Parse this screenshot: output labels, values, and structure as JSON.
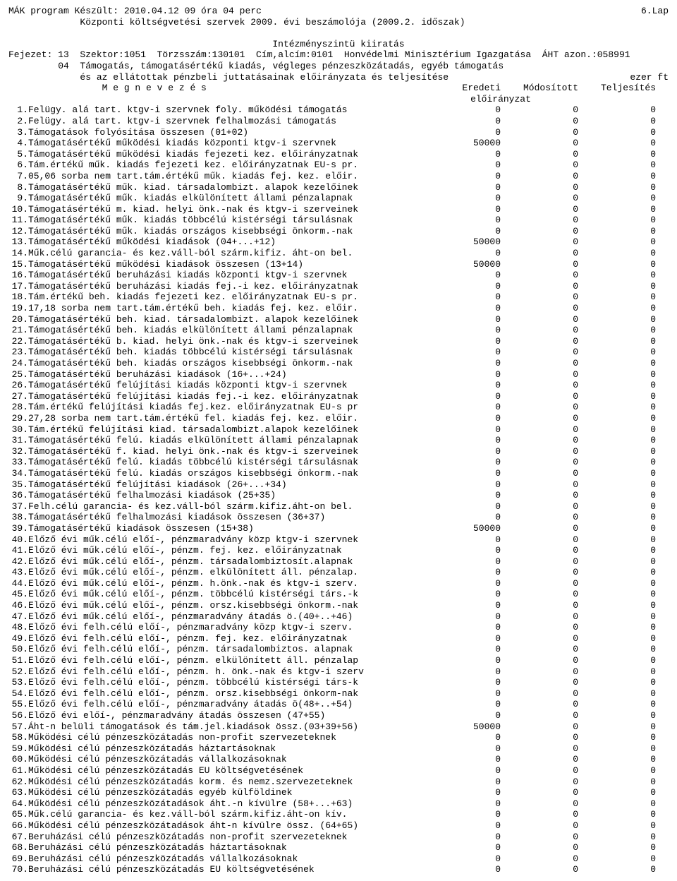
{
  "header": {
    "left_line1": " MÁK program Készült: 2010.04.12  09 óra 04 perc",
    "right_line1": "6.Lap",
    "line2": "             Központi költségvetési szervek 2009. évi beszámolója (2009.2. időszak)",
    "title_center": "Intézményszintü kiiratás",
    "fejezet_line": "Fejezet: 13  Szektor:1051  Törzsszám:130101  Cím,alcím:0101  Honvédelmi Minisztérium Igazgatása  ÁHT azon.:058991",
    "group_line1": "         04  Támogatás, támogatásértékű kiadás, végleges pénzeszközátadás, egyéb támogatás",
    "group_line2_left": "             és az ellátottak pénzbeli juttatásainak előirányzata és teljesítése",
    "group_line2_right": "ezer ft",
    "megnevezes": "                 M e g n e v e z é s",
    "col1": "Eredeti",
    "col2": "Módosított",
    "col3": "Teljesítés",
    "sub": "előirányzat"
  },
  "rows": [
    {
      "n": "1.",
      "label": "Felügy. alá tart. ktgv-i szervnek foly. működési támogatás",
      "v": [
        0,
        0,
        0
      ]
    },
    {
      "n": "2.",
      "label": "Felügy. alá tart. ktgv-i szervnek felhalmozási támogatás",
      "v": [
        0,
        0,
        0
      ]
    },
    {
      "n": "3.",
      "label": " Támogatások folyósítása összesen (01+02)",
      "v": [
        0,
        0,
        0
      ]
    },
    {
      "n": "4.",
      "label": "Támogatásértékű működési kiadás központi ktgv-i szervnek",
      "v": [
        50000,
        0,
        0
      ]
    },
    {
      "n": "5.",
      "label": "Támogatásértékű működési kiadás fejezeti kez. előirányzatnak",
      "v": [
        0,
        0,
        0
      ]
    },
    {
      "n": "6.",
      "label": "Tám.értékű műk. kiadás fejezeti kez. előirányzatnak EU-s pr.",
      "v": [
        0,
        0,
        0
      ]
    },
    {
      "n": "7.",
      "label": "05,06 sorba nem tart.tám.értékű műk. kiadás fej. kez. előir.",
      "v": [
        0,
        0,
        0
      ]
    },
    {
      "n": "8.",
      "label": "Támogatásértékű műk. kiad. társadalombizt. alapok kezelőinek",
      "v": [
        0,
        0,
        0
      ]
    },
    {
      "n": "9.",
      "label": "Támogatásértékű műk. kiadás elkülönített állami pénzalapnak",
      "v": [
        0,
        0,
        0
      ]
    },
    {
      "n": "10.",
      "label": "Támogatásértékű m. kiad. helyi önk.-nak és ktgv-i szerveinek",
      "v": [
        0,
        0,
        0
      ]
    },
    {
      "n": "11.",
      "label": "Támogatásértékű műk. kiadás többcélú kistérségi társulásnak",
      "v": [
        0,
        0,
        0
      ]
    },
    {
      "n": "12.",
      "label": "Támogatásértékű műk. kiadás országos kisebbségi önkorm.-nak",
      "v": [
        0,
        0,
        0
      ]
    },
    {
      "n": "13.",
      "label": " Támogatásértékű működési kiadások (04+...+12)",
      "v": [
        50000,
        0,
        0
      ]
    },
    {
      "n": "14.",
      "label": "Műk.célú garancia- és kez.váll-ból szárm.kifiz. áht-on bel.",
      "v": [
        0,
        0,
        0
      ]
    },
    {
      "n": "15.",
      "label": "Támogatásértékű működési kiadások összesen (13+14)",
      "v": [
        50000,
        0,
        0
      ]
    },
    {
      "n": "16.",
      "label": "Támogatásértékű beruházási kiadás központi ktgv-i szervnek",
      "v": [
        0,
        0,
        0
      ]
    },
    {
      "n": "17.",
      "label": "Támogatásértékű beruházási kiadás fej.-i kez. előirányzatnak",
      "v": [
        0,
        0,
        0
      ]
    },
    {
      "n": "18.",
      "label": "Tám.értékű beh. kiadás fejezeti kez. előirányzatnak EU-s pr.",
      "v": [
        0,
        0,
        0
      ]
    },
    {
      "n": "19.",
      "label": "17,18 sorba nem tart.tám.értékű beh. kiadás fej. kez. előir.",
      "v": [
        0,
        0,
        0
      ]
    },
    {
      "n": "20.",
      "label": "Támogatásértékű beh. kiad. társadalombizt. alapok kezelőinek",
      "v": [
        0,
        0,
        0
      ]
    },
    {
      "n": "21.",
      "label": "Támogatásértékű beh. kiadás elkülönített állami pénzalapnak",
      "v": [
        0,
        0,
        0
      ]
    },
    {
      "n": "22.",
      "label": "Támogatásértékű b. kiad. helyi önk.-nak és ktgv-i szerveinek",
      "v": [
        0,
        0,
        0
      ]
    },
    {
      "n": "23.",
      "label": "Támogatásértékű beh. kiadás többcélú kistérségi társulásnak",
      "v": [
        0,
        0,
        0
      ]
    },
    {
      "n": "24.",
      "label": "Támogatásértékű beh. kiadás országos kisebbségi önkorm.-nak",
      "v": [
        0,
        0,
        0
      ]
    },
    {
      "n": "25.",
      "label": "Támogatásértékű beruházási kiadások (16+...+24)",
      "v": [
        0,
        0,
        0
      ]
    },
    {
      "n": "26.",
      "label": "Támogatásértékű felújítási kiadás központi ktgv-i szervnek",
      "v": [
        0,
        0,
        0
      ]
    },
    {
      "n": "27.",
      "label": "Támogatásértékű felújítási kiadás fej.-i kez. előirányzatnak",
      "v": [
        0,
        0,
        0
      ]
    },
    {
      "n": "28.",
      "label": "Tám.értékű felújítási kiadás fej.kez. előirányzatnak EU-s pr",
      "v": [
        0,
        0,
        0
      ]
    },
    {
      "n": "29.",
      "label": "27,28 sorba nem tart.tám.értékű fel. kiadás fej. kez. előir.",
      "v": [
        0,
        0,
        0
      ]
    },
    {
      "n": "30.",
      "label": "Tám.értékű felújítási kiad. társadalombizt.alapok kezelőinek",
      "v": [
        0,
        0,
        0
      ]
    },
    {
      "n": "31.",
      "label": "Támogatásértékű felú. kiadás elkülönített állami pénzalapnak",
      "v": [
        0,
        0,
        0
      ]
    },
    {
      "n": "32.",
      "label": "Támogatásértékű f. kiad. helyi önk.-nak és ktgv-i szerveinek",
      "v": [
        0,
        0,
        0
      ]
    },
    {
      "n": "33.",
      "label": "Támogatásértékű felú. kiadás többcélú kistérségi társulásnak",
      "v": [
        0,
        0,
        0
      ]
    },
    {
      "n": "34.",
      "label": "Támogatásértékű felú. kiadás országos kisebbségi önkorm.-nak",
      "v": [
        0,
        0,
        0
      ]
    },
    {
      "n": "35.",
      "label": "Támogatásértékű felújítási kiadások (26+...+34)",
      "v": [
        0,
        0,
        0
      ]
    },
    {
      "n": "36.",
      "label": "Támogatásértékű felhalmozási kiadások (25+35)",
      "v": [
        0,
        0,
        0
      ]
    },
    {
      "n": "37.",
      "label": "Felh.célú garancia- és kez.váll-ból szárm.kifiz.áht-on bel.",
      "v": [
        0,
        0,
        0
      ]
    },
    {
      "n": "38.",
      "label": "Támogatásértékű felhalmozási kiadások összesen (36+37)",
      "v": [
        0,
        0,
        0
      ]
    },
    {
      "n": "39.",
      "label": "Támogatásértékű kiadások összesen (15+38)",
      "v": [
        50000,
        0,
        0
      ]
    },
    {
      "n": "40.",
      "label": "Előző évi műk.célú előí-, pénzmaradvány közp ktgv-i szervnek",
      "v": [
        0,
        0,
        0
      ]
    },
    {
      "n": "41.",
      "label": "Előző évi műk.célú előí-, pénzm. fej. kez. előirányzatnak",
      "v": [
        0,
        0,
        0
      ]
    },
    {
      "n": "42.",
      "label": "Előző évi műk.célú előí-, pénzm. társadalombiztosít.alapnak",
      "v": [
        0,
        0,
        0
      ]
    },
    {
      "n": "43.",
      "label": "Előző évi műk.célú előí-, pénzm. elkülönített áll. pénzalap.",
      "v": [
        0,
        0,
        0
      ]
    },
    {
      "n": "44.",
      "label": "Előző évi műk.célú előí-, pénzm. h.önk.-nak és ktgv-i szerv.",
      "v": [
        0,
        0,
        0
      ]
    },
    {
      "n": "45.",
      "label": "Előző évi műk.célú előí-, pénzm. többcélú kistérségi társ.-k",
      "v": [
        0,
        0,
        0
      ]
    },
    {
      "n": "46.",
      "label": "Előző évi műk.célú előí-, pénzm. orsz.kisebbségi önkorm.-nak",
      "v": [
        0,
        0,
        0
      ]
    },
    {
      "n": "47.",
      "label": "Előző évi műk.célú előí-, pénzmaradvány átadás ö.(40+..+46)",
      "v": [
        0,
        0,
        0
      ]
    },
    {
      "n": "48.",
      "label": "Előző évi felh.célú előí-, pénzmaradvány közp ktgv-i szerv.",
      "v": [
        0,
        0,
        0
      ]
    },
    {
      "n": "49.",
      "label": "Előző évi felh.célú előí-, pénzm. fej. kez. előirányzatnak",
      "v": [
        0,
        0,
        0
      ]
    },
    {
      "n": "50.",
      "label": "Előző évi felh.célú előí-, pénzm. társadalombiztos. alapnak",
      "v": [
        0,
        0,
        0
      ]
    },
    {
      "n": "51.",
      "label": "Előző évi felh.célú előí-, pénzm. elkülönített áll. pénzalap",
      "v": [
        0,
        0,
        0
      ]
    },
    {
      "n": "52.",
      "label": "Előző évi felh.célú előí-, pénzm. h. önk.-nak és ktgv-i szerv",
      "v": [
        0,
        0,
        0
      ]
    },
    {
      "n": "53.",
      "label": "Előző évi felh.célú előí-, pénzm. többcélú kistérségi társ-k",
      "v": [
        0,
        0,
        0
      ]
    },
    {
      "n": "54.",
      "label": "Előző évi felh.célú előí-, pénzm. orsz.kisebbségi önkorm-nak",
      "v": [
        0,
        0,
        0
      ]
    },
    {
      "n": "55.",
      "label": "Előző évi felh.célú előí-, pénzmaradvány átadás ö(48+..+54)",
      "v": [
        0,
        0,
        0
      ]
    },
    {
      "n": "56.",
      "label": "Előző évi előí-, pénzmaradvány átadás összesen (47+55)",
      "v": [
        0,
        0,
        0
      ]
    },
    {
      "n": "57.",
      "label": "Áht-n belüli támogatások és tám.jel.kiadások össz.(03+39+56)",
      "v": [
        50000,
        0,
        0
      ]
    },
    {
      "n": "58.",
      "label": "Működési célú pénzeszközátadás non-profit szervezeteknek",
      "v": [
        0,
        0,
        0
      ]
    },
    {
      "n": "59.",
      "label": "Működési célú pénzeszközátadás háztartásoknak",
      "v": [
        0,
        0,
        0
      ]
    },
    {
      "n": "60.",
      "label": "Működési célú pénzeszközátadás vállalkozásoknak",
      "v": [
        0,
        0,
        0
      ]
    },
    {
      "n": "61.",
      "label": "Működési célú pénzeszközátadás EU költségvetésének",
      "v": [
        0,
        0,
        0
      ]
    },
    {
      "n": "62.",
      "label": "Működési célú pénzeszközátadás korm. és nemz.szervezeteknek",
      "v": [
        0,
        0,
        0
      ]
    },
    {
      "n": "63.",
      "label": "Működési célú pénzeszközátadás egyéb külföldinek",
      "v": [
        0,
        0,
        0
      ]
    },
    {
      "n": "64.",
      "label": "Működési célú pénzeszközátadások áht.-n kívülre (58+...+63)",
      "v": [
        0,
        0,
        0
      ]
    },
    {
      "n": "65.",
      "label": "Műk.célú garancia- és kez.váll-ból szárm.kifiz.áht-on kív.",
      "v": [
        0,
        0,
        0
      ]
    },
    {
      "n": "66.",
      "label": "Működési célú pénzeszközátadások áht-n kívülre össz. (64+65)",
      "v": [
        0,
        0,
        0
      ]
    },
    {
      "n": "67.",
      "label": "Beruházási célú pénzeszközátadás non-profit szervezeteknek",
      "v": [
        0,
        0,
        0
      ]
    },
    {
      "n": "68.",
      "label": "Beruházási célú pénzeszközátadás háztartásoknak",
      "v": [
        0,
        0,
        0
      ]
    },
    {
      "n": "69.",
      "label": "Beruházási célú pénzeszközátadás vállalkozásoknak",
      "v": [
        0,
        0,
        0
      ]
    },
    {
      "n": "70.",
      "label": "Beruházási célú pénzeszközátadás EU költségvetésének",
      "v": [
        0,
        0,
        0
      ]
    }
  ]
}
